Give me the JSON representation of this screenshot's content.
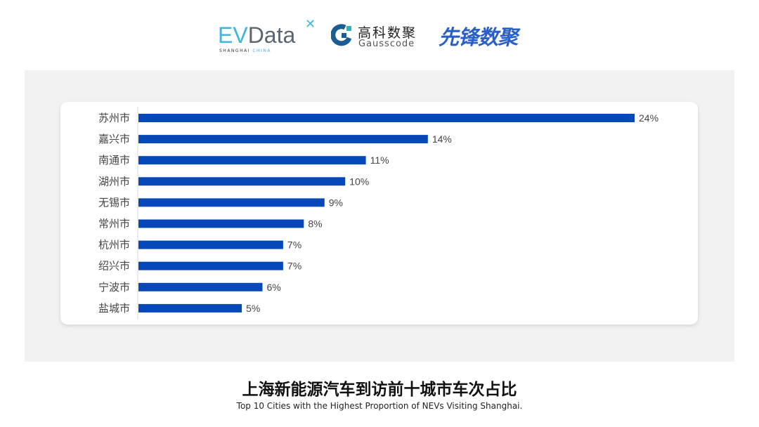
{
  "logos": {
    "evdata": "EVData",
    "evdata_sub": "SHANGHAI CHINA",
    "gausscode_cn": "高科数聚",
    "gausscode_en": "Gausscode",
    "xianfeng": "先锋数聚"
  },
  "colors": {
    "bar": "#0748b8",
    "panel": "#f2f2f2",
    "card": "#ffffff"
  },
  "chart_data": {
    "type": "bar",
    "orientation": "horizontal",
    "categories": [
      "苏州市",
      "嘉兴市",
      "南通市",
      "湖州市",
      "无锡市",
      "常州市",
      "杭州市",
      "绍兴市",
      "宁波市",
      "盐城市"
    ],
    "values": [
      24,
      14,
      11,
      10,
      9,
      8,
      7,
      7,
      6,
      5
    ],
    "value_labels": [
      "24%",
      "14%",
      "11%",
      "10%",
      "9%",
      "8%",
      "7%",
      "7%",
      "6%",
      "5%"
    ],
    "unit": "%",
    "grid": false,
    "title": "上海新能源汽车到访前十城市车次占比",
    "subtitle": "Top 10 Cities with the Highest Proportion of  NEVs Visiting Shanghai."
  }
}
